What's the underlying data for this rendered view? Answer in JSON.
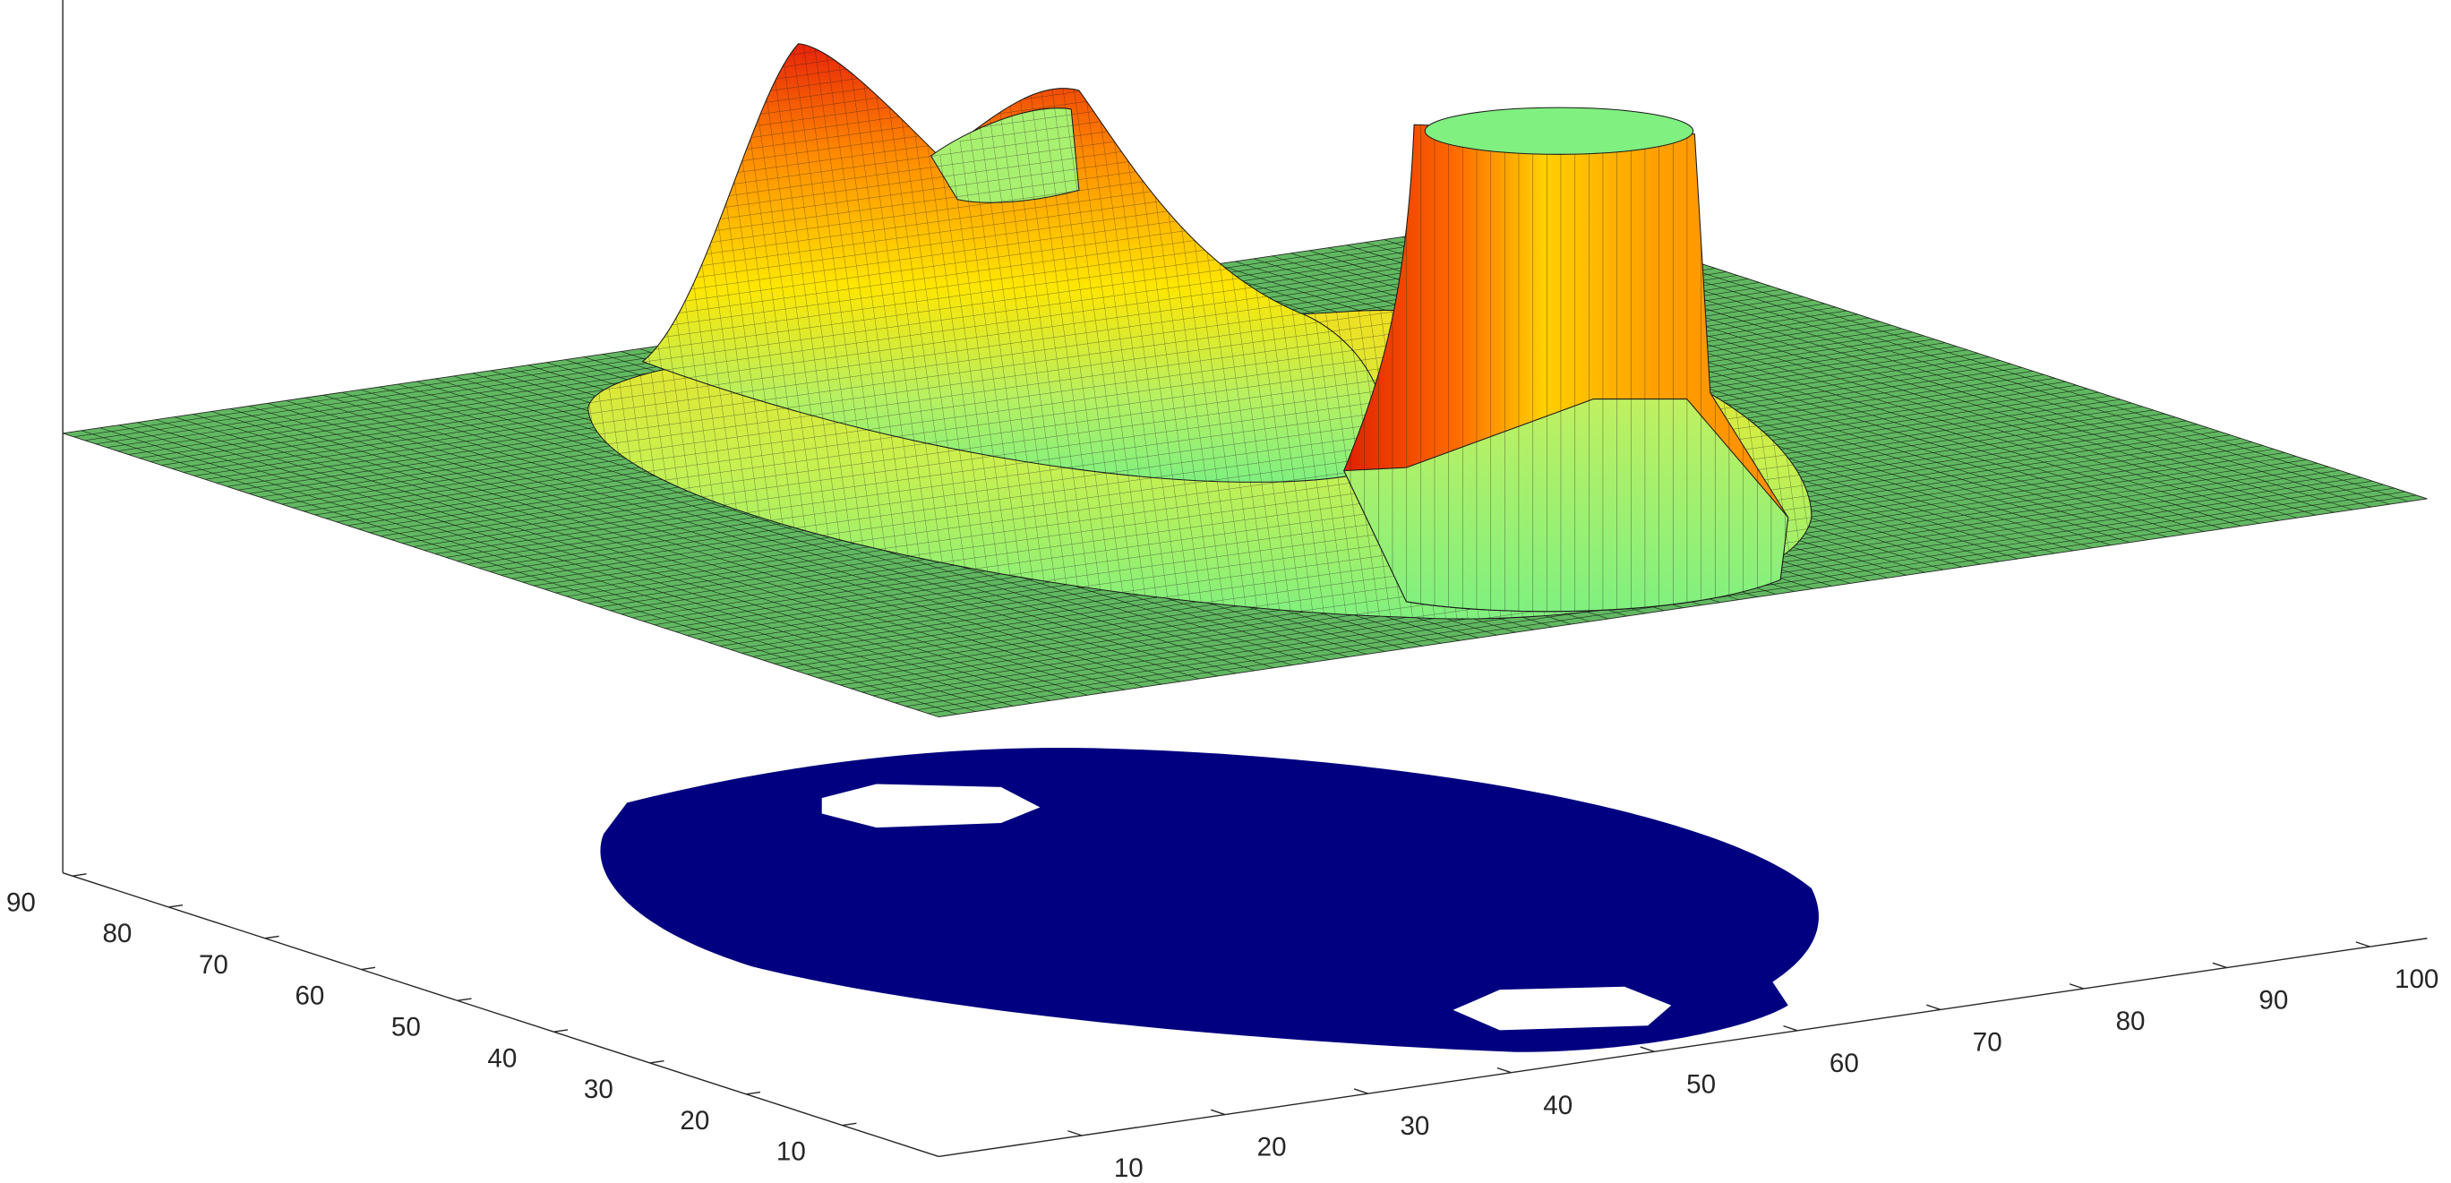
{
  "chart_data": {
    "type": "surface",
    "colormap": "jet",
    "xlim": [
      0,
      104
    ],
    "xticks": [
      10,
      20,
      30,
      40,
      50,
      60,
      70,
      80,
      90,
      100
    ],
    "ylim": [
      0,
      91
    ],
    "yticks": [
      10,
      20,
      30,
      40,
      50,
      60,
      70,
      80,
      90
    ]
  }
}
